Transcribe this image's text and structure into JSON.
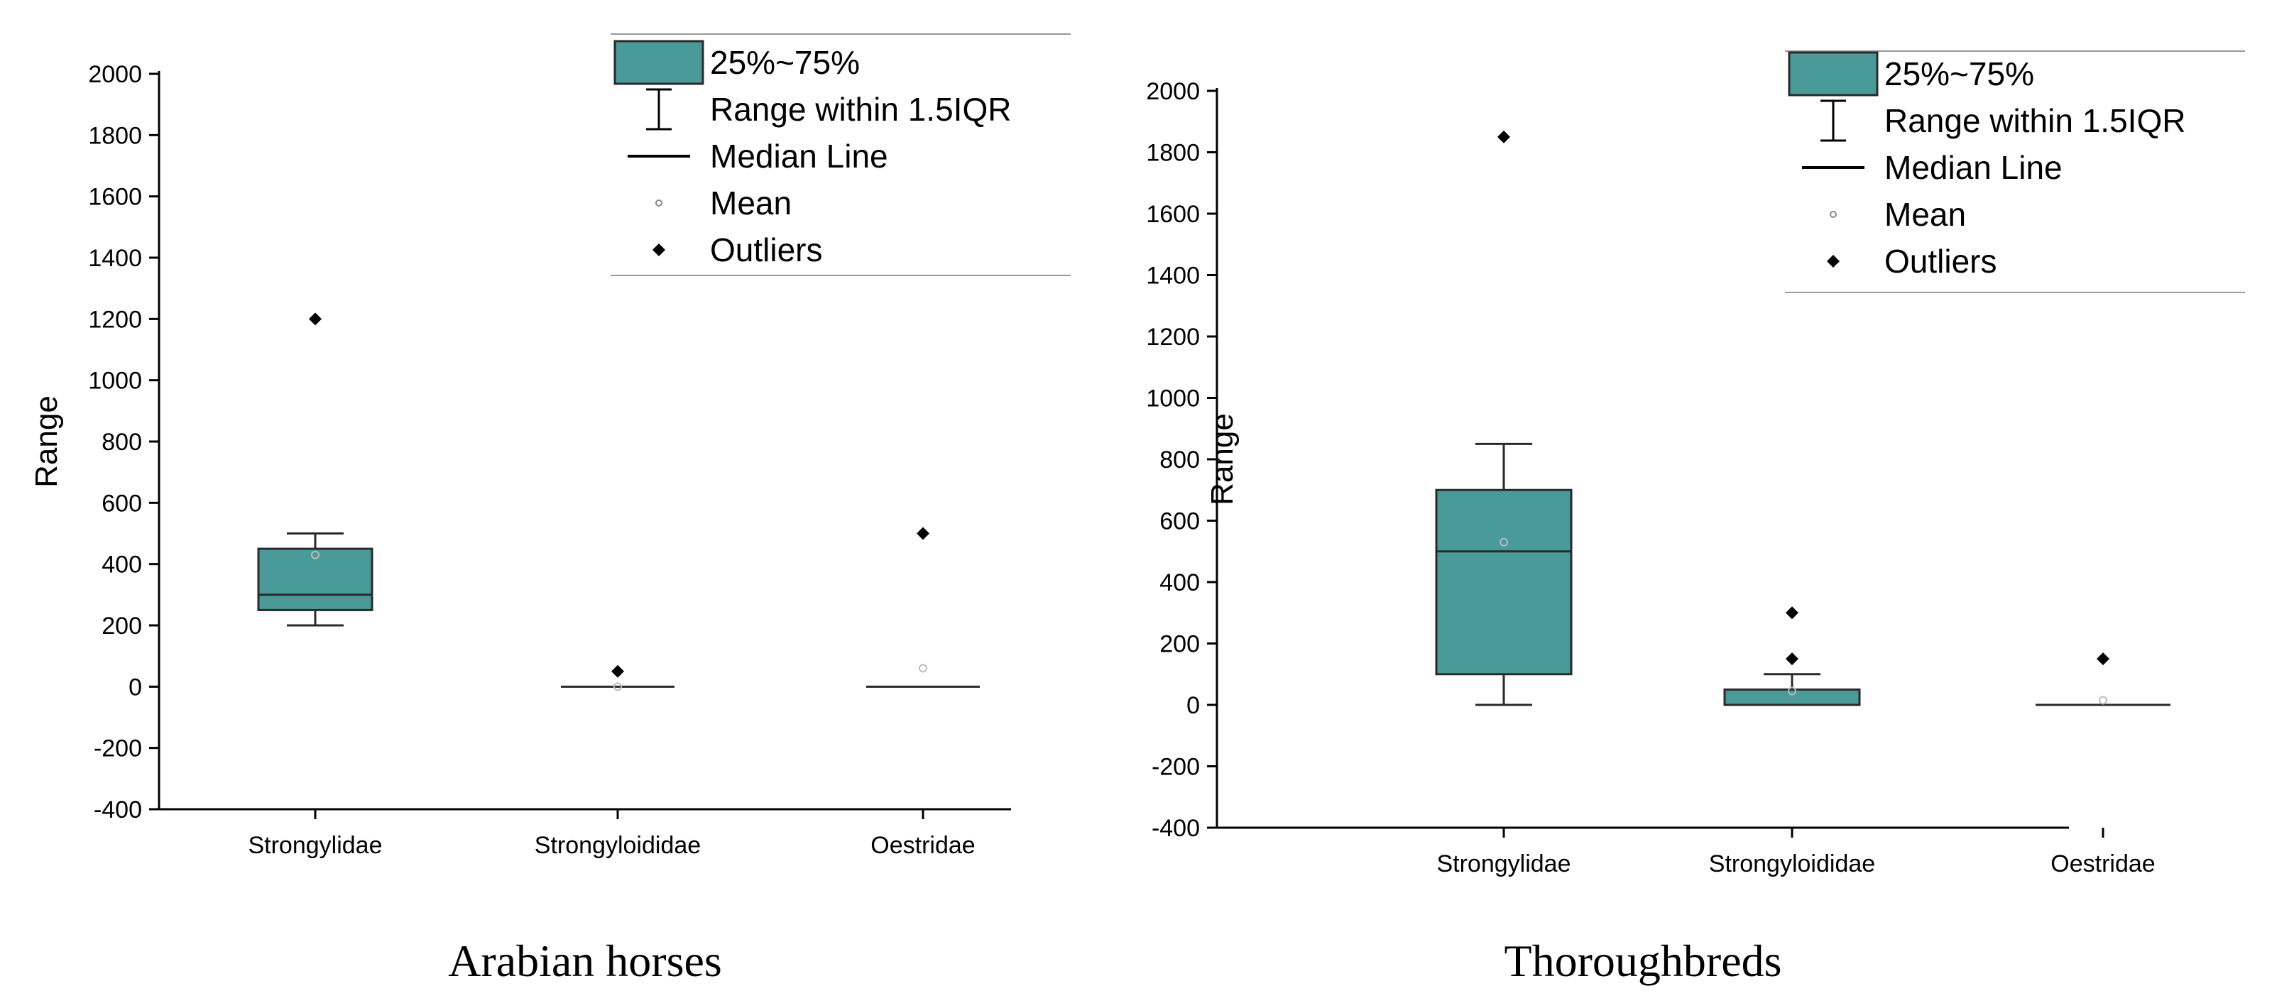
{
  "chart_data": [
    {
      "type": "boxplot",
      "caption": "Arabian horses",
      "ylabel": "Range",
      "ylim": [
        -400,
        2000
      ],
      "yticks": [
        "2000",
        "1800",
        "1600",
        "1400",
        "1200",
        "1000",
        "800",
        "600",
        "400",
        "200",
        "0",
        "-200",
        "-400"
      ],
      "categories": [
        "Strongylidae",
        "Strongyloididae",
        "Oestridae"
      ],
      "boxes": [
        {
          "category": "Strongylidae",
          "q1": 250,
          "median": 300,
          "q3": 450,
          "whisker_low": 200,
          "whisker_high": 500,
          "mean": 430,
          "outliers": [
            1200
          ]
        },
        {
          "category": "Strongyloididae",
          "q1": 0,
          "median": 0,
          "q3": 0,
          "whisker_low": 0,
          "whisker_high": 0,
          "mean": 0,
          "outliers": [
            50
          ]
        },
        {
          "category": "Oestridae",
          "q1": 0,
          "median": 0,
          "q3": 0,
          "whisker_low": 0,
          "whisker_high": 0,
          "mean": 60,
          "outliers": [
            500
          ]
        }
      ],
      "legend": {
        "placement": "top-right",
        "entries": [
          "25%~75%",
          "Range within 1.5IQR",
          "Median Line",
          "Mean",
          "Outliers"
        ]
      }
    },
    {
      "type": "boxplot",
      "caption": "Thoroughbreds",
      "ylabel": "Range",
      "ylim": [
        -400,
        2000
      ],
      "yticks": [
        "2000",
        "1800",
        "1600",
        "1400",
        "1200",
        "1000",
        "800",
        "600",
        "400",
        "200",
        "0",
        "-200",
        "-400"
      ],
      "categories": [
        "Strongylidae",
        "Strongyloididae",
        "Oestridae"
      ],
      "boxes": [
        {
          "category": "Strongylidae",
          "q1": 100,
          "median": 500,
          "q3": 700,
          "whisker_low": 0,
          "whisker_high": 850,
          "mean": 530,
          "outliers": [
            1850
          ]
        },
        {
          "category": "Strongyloididae",
          "q1": 0,
          "median": 0,
          "q3": 50,
          "whisker_low": 0,
          "whisker_high": 100,
          "mean": 45,
          "outliers": [
            150,
            300
          ]
        },
        {
          "category": "Oestridae",
          "q1": 0,
          "median": 0,
          "q3": 0,
          "whisker_low": 0,
          "whisker_high": 0,
          "mean": 15,
          "outliers": [
            150
          ]
        }
      ],
      "legend": {
        "placement": "top-right",
        "entries": [
          "25%~75%",
          "Range within 1.5IQR",
          "Median Line",
          "Mean",
          "Outliers"
        ]
      }
    }
  ],
  "colors": {
    "box_fill": "#4a9a9a",
    "box_stroke": "#2a2a2a",
    "axis": "#000000",
    "legend_rule": "#999999"
  }
}
